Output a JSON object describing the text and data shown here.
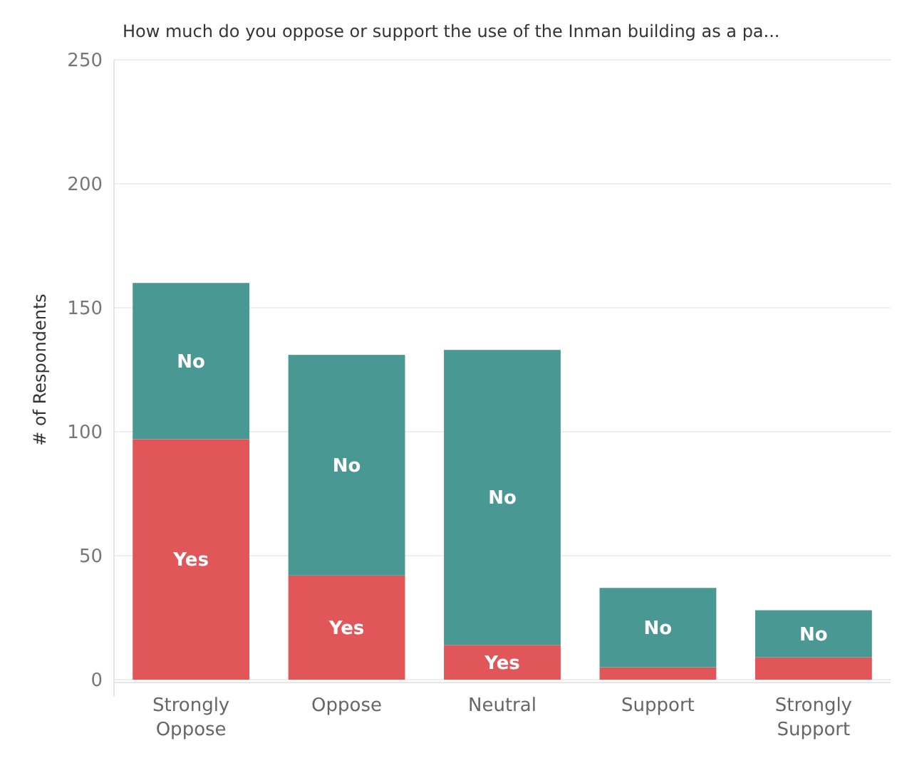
{
  "chart_data": {
    "type": "bar",
    "stacked": true,
    "title": "How much do you oppose or support the use of the Inman building as a pa...",
    "ylabel": "# of Respondents",
    "categories": [
      "Strongly Oppose",
      "Oppose",
      "Neutral",
      "Support",
      "Strongly Support"
    ],
    "series": [
      {
        "name": "Yes",
        "color": "#e15759",
        "values": [
          97,
          42,
          14,
          5,
          9
        ]
      },
      {
        "name": "No",
        "color": "#499894",
        "values": [
          63,
          89,
          119,
          32,
          19
        ]
      }
    ],
    "ylim": [
      0,
      250
    ],
    "yticks": [
      0,
      50,
      100,
      150,
      200,
      250
    ],
    "grid": "y"
  }
}
